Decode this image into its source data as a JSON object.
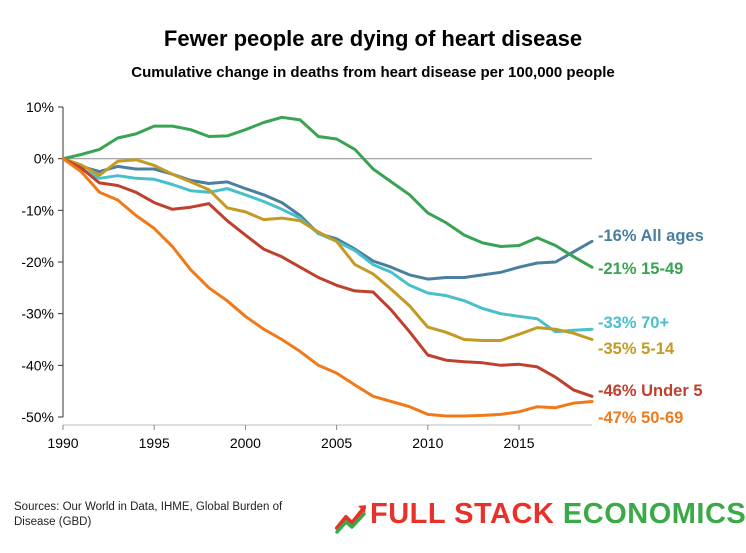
{
  "title": "Fewer people are dying of heart disease",
  "subtitle": "Cumulative change in deaths from heart disease per 100,000 people",
  "sources": "Sources: Our World in Data, IHME, Global Burden of Disease (GBD)",
  "logo": {
    "word1": "FULL STACK",
    "word2": "ECONOMICS",
    "icon": "rising-chart-arrow-icon"
  },
  "colors": {
    "zero_line": "#999999",
    "axis": "#333333",
    "logo_red": "#e8312a",
    "logo_green": "#3aaa48"
  },
  "chart_data": {
    "type": "line",
    "title": "Fewer people are dying of heart disease",
    "subtitle": "Cumulative change in deaths from heart disease per 100,000 people",
    "xlim": [
      1990,
      2019
    ],
    "ylim": [
      -50,
      10
    ],
    "x_ticks": [
      1990,
      1995,
      2000,
      2005,
      2010,
      2015
    ],
    "y_ticks": [
      10,
      0,
      -10,
      -20,
      -30,
      -40,
      -50
    ],
    "x_tick_labels": [
      "1990",
      "1995",
      "2000",
      "2005",
      "2010",
      "2015"
    ],
    "y_tick_labels": [
      "10%",
      "0%",
      "-10%",
      "-20%",
      "-30%",
      "-40%",
      "-50%"
    ],
    "grid": false,
    "legend": "direct labels at right end of lines",
    "x": [
      1990,
      1991,
      1992,
      1993,
      1994,
      1995,
      1996,
      1997,
      1998,
      1999,
      2000,
      2001,
      2002,
      2003,
      2004,
      2005,
      2006,
      2007,
      2008,
      2009,
      2010,
      2011,
      2012,
      2013,
      2014,
      2015,
      2016,
      2017,
      2018,
      2019
    ],
    "series": [
      {
        "label": "-16% All ages",
        "color": "#4a7fa0",
        "values": [
          0,
          -1.5,
          -2.5,
          -1.5,
          -2,
          -2,
          -3,
          -4.2,
          -4.8,
          -4.5,
          -5.8,
          -7,
          -8.5,
          -11,
          -14.5,
          -15.5,
          -17.5,
          -19.8,
          -21,
          -22.5,
          -23.3,
          -23,
          -23,
          -22.5,
          -22,
          -21,
          -20.2,
          -20,
          -18,
          -16
        ]
      },
      {
        "label": "-21% 15-49",
        "color": "#3aa352",
        "values": [
          0,
          0.8,
          1.8,
          4,
          4.8,
          6.3,
          6.3,
          5.6,
          4.3,
          4.4,
          5.6,
          7,
          8,
          7.5,
          4.3,
          3.8,
          1.8,
          -2,
          -4.5,
          -7,
          -10.5,
          -12.4,
          -14.8,
          -16.3,
          -17,
          -16.8,
          -15.3,
          -16.8,
          -19,
          -21
        ]
      },
      {
        "label": "-33% 70+",
        "color": "#48c0cc",
        "values": [
          0,
          -2,
          -3.8,
          -3.3,
          -3.8,
          -4,
          -5,
          -6.2,
          -6.5,
          -5.8,
          -7,
          -8.3,
          -9.8,
          -11.5,
          -14.5,
          -16,
          -17.8,
          -20.5,
          -22,
          -24.5,
          -26,
          -26.5,
          -27.5,
          -29,
          -30,
          -30.5,
          -31,
          -33.5,
          -33.2,
          -33
        ]
      },
      {
        "label": "-35% 5-14",
        "color": "#c39b23",
        "values": [
          0,
          -1.2,
          -3.2,
          -0.5,
          -0.2,
          -1.3,
          -3,
          -4.5,
          -6,
          -9.5,
          -10.3,
          -11.8,
          -11.5,
          -12,
          -14.2,
          -16,
          -20.5,
          -22.3,
          -25.3,
          -28.5,
          -32.6,
          -33.6,
          -35,
          -35.2,
          -35.2,
          -34,
          -32.7,
          -33,
          -33.8,
          -35
        ]
      },
      {
        "label": "-46% Under 5",
        "color": "#c0402e",
        "values": [
          0,
          -1.8,
          -4.7,
          -5.2,
          -6.5,
          -8.5,
          -9.8,
          -9.4,
          -8.7,
          -12,
          -14.8,
          -17.5,
          -19,
          -21,
          -23,
          -24.5,
          -25.6,
          -25.8,
          -29.3,
          -33.5,
          -38,
          -39,
          -39.3,
          -39.5,
          -40,
          -39.8,
          -40.3,
          -42.3,
          -44.8,
          -46
        ]
      },
      {
        "label": "-47% 50-69",
        "color": "#f07a1a",
        "values": [
          0,
          -2.5,
          -6.5,
          -8,
          -11,
          -13.5,
          -17,
          -21.5,
          -25,
          -27.5,
          -30.5,
          -33,
          -35,
          -37.3,
          -40,
          -41.5,
          -43.8,
          -46,
          -47,
          -48,
          -49.5,
          -49.8,
          -49.8,
          -49.7,
          -49.5,
          -49,
          -48,
          -48.2,
          -47.3,
          -47
        ]
      }
    ]
  }
}
